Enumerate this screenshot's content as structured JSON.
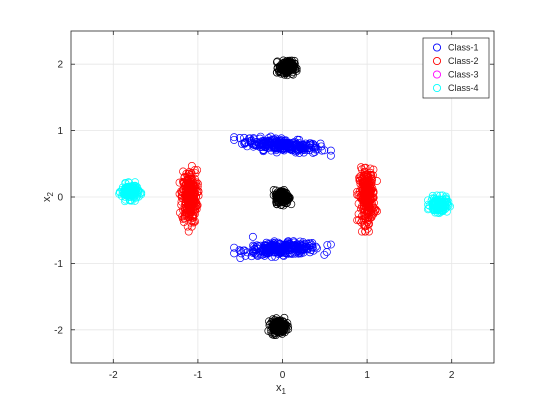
{
  "chart_data": {
    "type": "scatter",
    "title": "",
    "xlabel": {
      "base": "x",
      "sub": "1"
    },
    "ylabel": {
      "base": "x",
      "sub": "2"
    },
    "xlim": [
      -2.5,
      2.5
    ],
    "ylim": [
      -2.5,
      2.5
    ],
    "xticks": [
      -2,
      -1,
      0,
      1,
      2
    ],
    "yticks": [
      -2,
      -1,
      0,
      1,
      2
    ],
    "x_tick_labels": [
      "-2",
      "-1",
      "0",
      "1",
      "2"
    ],
    "y_tick_labels": [
      "-2",
      "-1",
      "0",
      "1",
      "2"
    ],
    "grid": true,
    "marker": "open-circle",
    "legend_position": "top-right",
    "series": [
      {
        "name": "Class-1",
        "color": "#0000ff",
        "clusters": [
          {
            "center": [
              0.0,
              0.78
            ],
            "spread": [
              0.22,
              0.045
            ],
            "tilt": -0.12,
            "count": 280
          },
          {
            "center": [
              0.0,
              -0.78
            ],
            "spread": [
              0.22,
              0.045
            ],
            "tilt": 0.05,
            "count": 280
          }
        ],
        "outliers": [
          [
            -0.35,
            -0.6
          ]
        ]
      },
      {
        "name": "Class-2",
        "color": "#ff0000",
        "clusters": [
          {
            "center": [
              -1.1,
              0.0
            ],
            "spread": [
              0.045,
              0.2
            ],
            "tilt": 0.0,
            "count": 280
          },
          {
            "center": [
              1.0,
              0.0
            ],
            "spread": [
              0.045,
              0.2
            ],
            "tilt": 0.0,
            "count": 280
          }
        ],
        "outliers": []
      },
      {
        "name": "Class-3",
        "color": "#ff00ff",
        "clusters": [],
        "outliers": []
      },
      {
        "name": "Class-4",
        "color": "#00ffff",
        "clusters": [
          {
            "center": [
              -1.8,
              0.08
            ],
            "spread": [
              0.05,
              0.055
            ],
            "tilt": 0.0,
            "count": 160
          },
          {
            "center": [
              1.85,
              -0.12
            ],
            "spread": [
              0.05,
              0.055
            ],
            "tilt": 0.0,
            "count": 160
          }
        ],
        "outliers": []
      },
      {
        "name": "",
        "color": "#000000",
        "clusters": [
          {
            "center": [
              0.05,
              1.95
            ],
            "spread": [
              0.045,
              0.05
            ],
            "tilt": 0.0,
            "count": 200
          },
          {
            "center": [
              0.0,
              0.0
            ],
            "spread": [
              0.04,
              0.05
            ],
            "tilt": 0.0,
            "count": 200
          },
          {
            "center": [
              -0.05,
              -1.95
            ],
            "spread": [
              0.045,
              0.05
            ],
            "tilt": 0.0,
            "count": 200
          }
        ],
        "outliers": []
      }
    ],
    "legend": [
      "Class-1",
      "Class-2",
      "Class-3",
      "Class-4"
    ]
  }
}
